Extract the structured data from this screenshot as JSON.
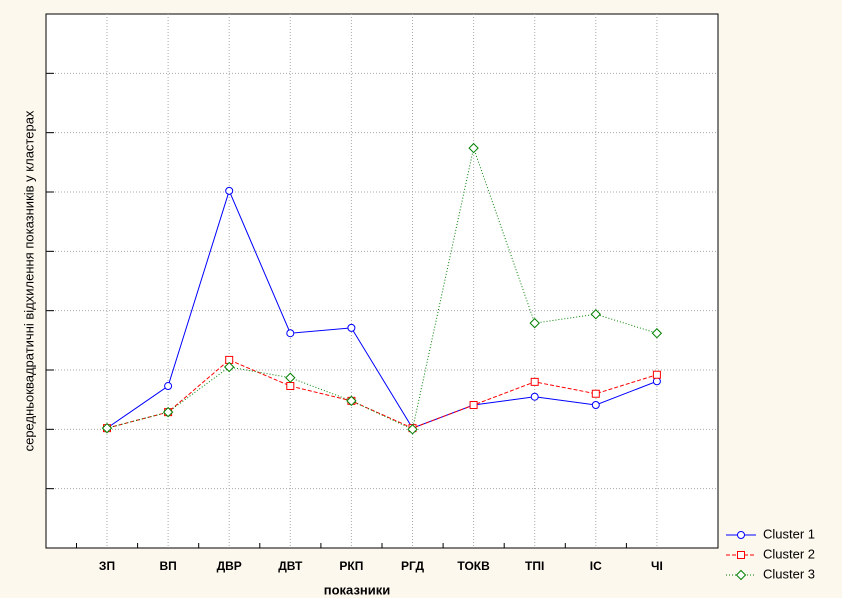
{
  "chart_data": {
    "type": "line",
    "y_label": "середньоквадратичні відхилення показників у кластерах",
    "x_label": "показники",
    "categories": [
      "ЗП",
      "ВП",
      "ДВР",
      "ДВТ",
      "РКП",
      "РГД",
      "ТОКВ",
      "ТПІ",
      "ІС",
      "ЧІ"
    ],
    "series": [
      {
        "name": "Cluster  1",
        "color": "#0000ff",
        "values": [
          2.02,
          2.73,
          6.02,
          3.62,
          3.71,
          2.02,
          2.41,
          2.55,
          2.41,
          2.81
        ]
      },
      {
        "name": "Cluster  2",
        "color": "#ff0000",
        "values": [
          2.02,
          2.29,
          3.17,
          2.73,
          2.48,
          2.02,
          2.41,
          2.8,
          2.6,
          2.92
        ]
      },
      {
        "name": "Cluster  3",
        "color": "#008000",
        "values": [
          2.02,
          2.29,
          3.05,
          2.87,
          2.48,
          2.0,
          6.74,
          3.79,
          3.94,
          3.62
        ]
      }
    ],
    "ylim": [
      0,
      9
    ],
    "yticks": [
      1,
      2,
      3,
      4,
      5,
      6,
      7,
      8
    ],
    "grid": true
  }
}
